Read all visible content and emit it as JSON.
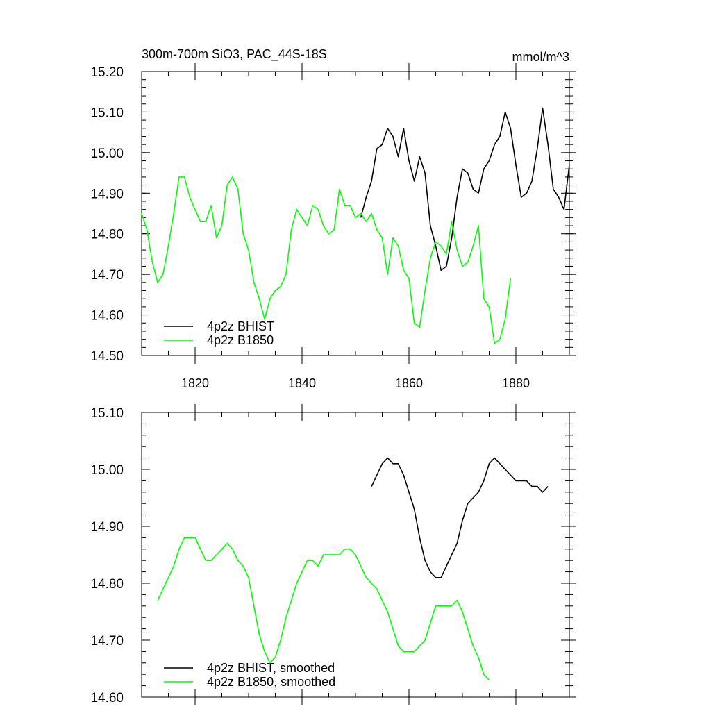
{
  "chart_data": [
    {
      "type": "line",
      "title": "300m-700m SiO3, PAC_44S-18S",
      "units": "mmol/m^3",
      "xlim": [
        1810,
        1890
      ],
      "ylim": [
        14.5,
        15.2
      ],
      "xticks": [
        1820,
        1840,
        1860,
        1880
      ],
      "yticks": [
        14.5,
        14.6,
        14.7,
        14.8,
        14.9,
        15.0,
        15.1,
        15.2
      ],
      "yticklabels": [
        "14.50",
        "14.60",
        "14.70",
        "14.80",
        "14.90",
        "15.00",
        "15.10",
        "15.20"
      ],
      "legend_position": "bottom-left",
      "series": [
        {
          "name": "4p2z BHIST",
          "color": "#000000",
          "x_start": 1851,
          "values": [
            14.84,
            14.89,
            14.93,
            15.01,
            15.02,
            15.06,
            15.04,
            14.99,
            15.06,
            14.98,
            14.93,
            14.99,
            14.95,
            14.82,
            14.77,
            14.71,
            14.72,
            14.79,
            14.89,
            14.96,
            14.95,
            14.91,
            14.9,
            14.96,
            14.98,
            15.02,
            15.04,
            15.1,
            15.06,
            14.97,
            14.89,
            14.9,
            14.93,
            15.01,
            15.11,
            15.02,
            14.91,
            14.89,
            14.86,
            14.97
          ]
        },
        {
          "name": "4p2z B1850",
          "color": "#00ff00",
          "x_start": 1810,
          "values": [
            14.85,
            14.81,
            14.73,
            14.68,
            14.7,
            14.77,
            14.85,
            14.94,
            14.94,
            14.89,
            14.86,
            14.83,
            14.83,
            14.87,
            14.79,
            14.82,
            14.92,
            14.94,
            14.91,
            14.8,
            14.76,
            14.68,
            14.64,
            14.59,
            14.64,
            14.66,
            14.67,
            14.7,
            14.81,
            14.86,
            14.84,
            14.82,
            14.87,
            14.86,
            14.82,
            14.8,
            14.81,
            14.91,
            14.87,
            14.87,
            14.84,
            14.85,
            14.83,
            14.85,
            14.81,
            14.79,
            14.7,
            14.79,
            14.77,
            14.71,
            14.69,
            14.58,
            14.57,
            14.66,
            14.74,
            14.78,
            14.77,
            14.75,
            14.83,
            14.76,
            14.72,
            14.73,
            14.77,
            14.82,
            14.64,
            14.62,
            14.53,
            14.54,
            14.59,
            14.69
          ]
        }
      ]
    },
    {
      "type": "line",
      "xlim": [
        1810,
        1890
      ],
      "ylim": [
        14.6,
        15.1
      ],
      "xticks": [
        1820,
        1840,
        1860,
        1880
      ],
      "yticks": [
        14.6,
        14.7,
        14.8,
        14.9,
        15.0,
        15.1
      ],
      "yticklabels": [
        "14.60",
        "14.70",
        "14.80",
        "14.90",
        "15.00",
        "15.10"
      ],
      "legend_position": "bottom-left",
      "series": [
        {
          "name": "4p2z BHIST, smoothed",
          "color": "#000000",
          "x_start": 1853,
          "values": [
            14.97,
            14.99,
            15.01,
            15.02,
            15.01,
            15.01,
            14.99,
            14.96,
            14.93,
            14.88,
            14.84,
            14.82,
            14.81,
            14.81,
            14.83,
            14.85,
            14.87,
            14.91,
            14.94,
            14.95,
            14.96,
            14.98,
            15.01,
            15.02,
            15.01,
            15.0,
            14.99,
            14.98,
            14.98,
            14.98,
            14.97,
            14.97,
            14.96,
            14.97
          ]
        },
        {
          "name": "4p2z B1850, smoothed",
          "color": "#00ff00",
          "x_start": 1813,
          "values": [
            14.77,
            14.79,
            14.81,
            14.83,
            14.86,
            14.88,
            14.88,
            14.88,
            14.86,
            14.84,
            14.84,
            14.85,
            14.86,
            14.87,
            14.86,
            14.84,
            14.83,
            14.81,
            14.76,
            14.71,
            14.68,
            14.66,
            14.67,
            14.7,
            14.74,
            14.77,
            14.8,
            14.82,
            14.84,
            14.84,
            14.83,
            14.85,
            14.85,
            14.85,
            14.85,
            14.86,
            14.86,
            14.85,
            14.83,
            14.81,
            14.8,
            14.79,
            14.77,
            14.75,
            14.72,
            14.69,
            14.68,
            14.68,
            14.68,
            14.69,
            14.7,
            14.73,
            14.76,
            14.76,
            14.76,
            14.76,
            14.77,
            14.75,
            14.72,
            14.69,
            14.67,
            14.64,
            14.63
          ]
        }
      ]
    }
  ]
}
